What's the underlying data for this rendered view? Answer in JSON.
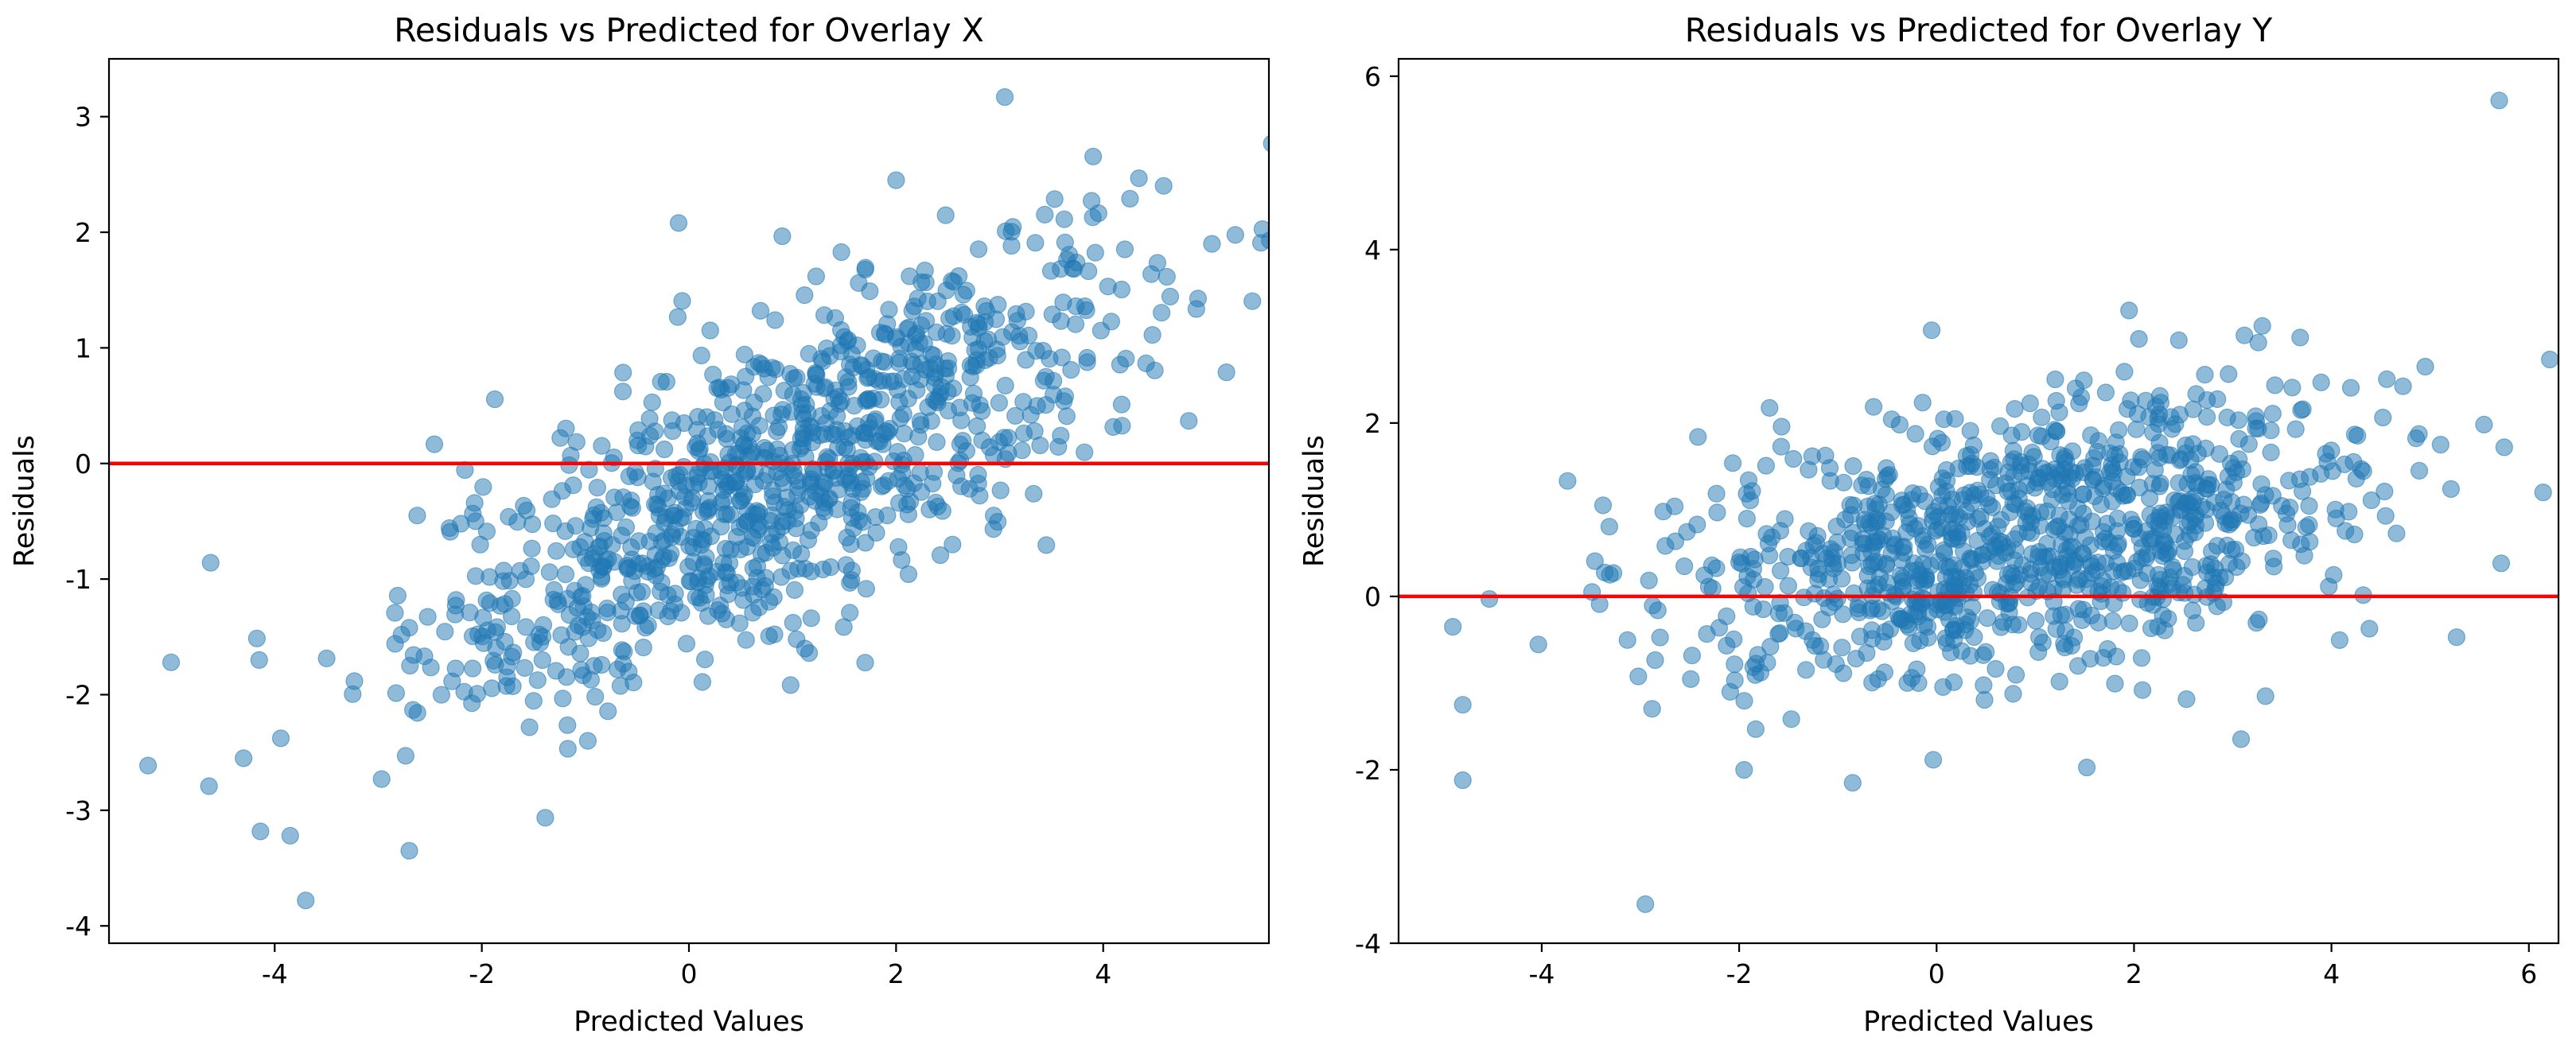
{
  "chart_data": [
    {
      "type": "scatter",
      "title": "Residuals vs Predicted for Overlay X",
      "xlabel": "Predicted Values",
      "ylabel": "Residuals",
      "xlim": [
        -5.6,
        5.6
      ],
      "ylim": [
        -4.15,
        3.5
      ],
      "xticks": [
        -4,
        -2,
        0,
        2,
        4
      ],
      "yticks": [
        -4,
        -3,
        -2,
        -1,
        0,
        1,
        2,
        3
      ],
      "xtick_labels": [
        "-4",
        "-2",
        "0",
        "2",
        "4"
      ],
      "ytick_labels": [
        "-4",
        "-3",
        "-2",
        "-1",
        "0",
        "1",
        "2",
        "3"
      ],
      "reference_line": {
        "y": 0,
        "color": "#ff0000"
      },
      "series": [
        {
          "name": "residuals",
          "color": "#1f77b4",
          "n_points": 1000,
          "bulk_slope": 0.45,
          "bulk_intercept": -0.5,
          "bulk_spread": 0.65,
          "outliers": [
            [
              3.05,
              3.17
            ],
            [
              -0.1,
              2.08
            ],
            [
              2.0,
              2.45
            ],
            [
              5.05,
              1.9
            ],
            [
              -5.0,
              -1.72
            ],
            [
              -4.3,
              -2.55
            ],
            [
              -3.7,
              -3.78
            ],
            [
              -3.85,
              -3.22
            ],
            [
              -2.7,
              -3.35
            ],
            [
              -4.15,
              -1.7
            ]
          ]
        }
      ]
    },
    {
      "type": "scatter",
      "title": "Residuals vs Predicted for Overlay Y",
      "xlabel": "Predicted Values",
      "ylabel": "Residuals",
      "xlim": [
        -5.45,
        6.3
      ],
      "ylim": [
        -4.0,
        6.2
      ],
      "xticks": [
        -4,
        -2,
        0,
        2,
        4,
        6
      ],
      "yticks": [
        -4,
        -2,
        0,
        2,
        4,
        6
      ],
      "xtick_labels": [
        "-4",
        "-2",
        "0",
        "2",
        "4",
        "6"
      ],
      "ytick_labels": [
        "-4",
        "-2",
        "0",
        "2",
        "4",
        "6"
      ],
      "reference_line": {
        "y": 0,
        "color": "#ff0000"
      },
      "series": [
        {
          "name": "residuals",
          "color": "#1f77b4",
          "n_points": 1000,
          "bulk_slope": 0.15,
          "bulk_intercept": 0.55,
          "bulk_spread": 0.75,
          "outliers": [
            [
              5.7,
              5.72
            ],
            [
              -0.05,
              3.07
            ],
            [
              3.3,
              3.12
            ],
            [
              2.05,
              2.97
            ],
            [
              -2.95,
              -3.55
            ],
            [
              -4.8,
              -2.12
            ],
            [
              -4.8,
              -1.25
            ],
            [
              -0.85,
              -2.15
            ],
            [
              -1.95,
              -2.0
            ],
            [
              -4.9,
              -0.35
            ],
            [
              5.75,
              1.72
            ],
            [
              4.95,
              2.65
            ]
          ]
        }
      ]
    }
  ]
}
